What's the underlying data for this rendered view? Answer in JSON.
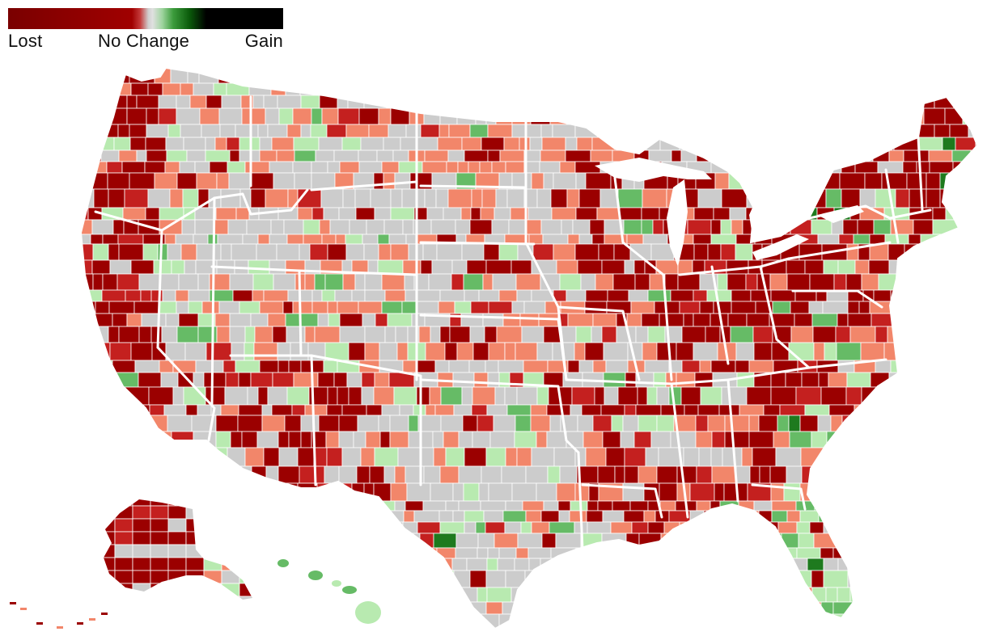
{
  "legend": {
    "low_label": "Lost",
    "mid_label": "No Change",
    "high_label": "Gain"
  },
  "colors": {
    "lost_strong": "#9b0000",
    "lost_medium": "#c4201f",
    "lost_light": "#f2866a",
    "no_change": "#cccccc",
    "gain_light": "#b8eab0",
    "gain_medium": "#66bb66",
    "gain_strong": "#1e7a1e",
    "gain_max": "#002500",
    "border": "#ffffff"
  }
}
